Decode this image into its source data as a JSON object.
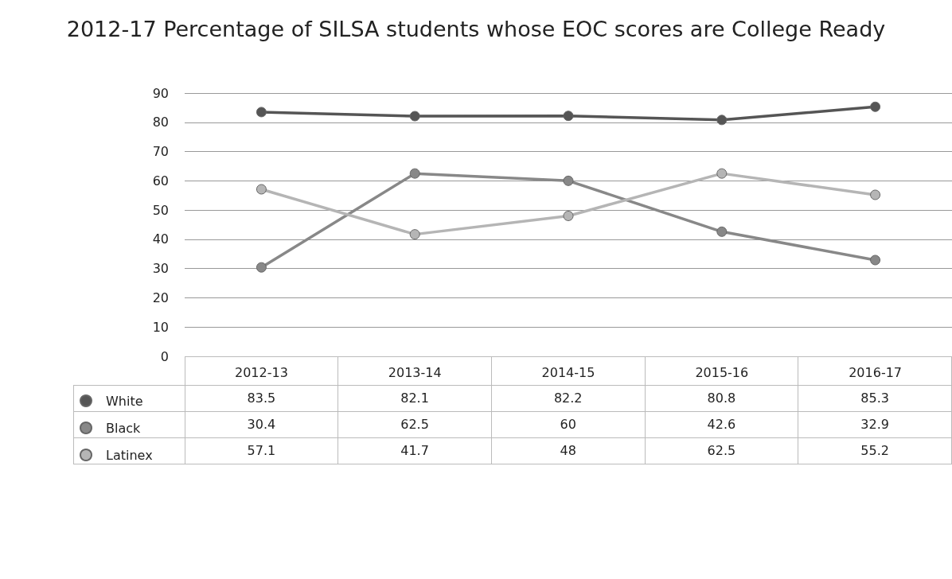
{
  "chart_data": {
    "type": "line",
    "title": "2012-17 Percentage of SILSA students whose EOC scores are College Ready",
    "categories": [
      "2012-13",
      "2013-14",
      "2014-15",
      "2015-16",
      "2016-17"
    ],
    "series": [
      {
        "name": "White",
        "color": "#555555",
        "values": [
          83.5,
          82.1,
          82.2,
          80.8,
          85.3
        ]
      },
      {
        "name": "Black",
        "color": "#888888",
        "values": [
          30.4,
          62.5,
          60,
          42.6,
          32.9
        ]
      },
      {
        "name": "Latinex",
        "color": "#b5b5b5",
        "values": [
          57.1,
          41.7,
          48,
          62.5,
          55.2
        ]
      }
    ],
    "ylim": [
      0,
      90
    ],
    "yticks": [
      0,
      10,
      20,
      30,
      40,
      50,
      60,
      70,
      80,
      90
    ],
    "grid": "y",
    "legend": "bottom left",
    "marker": "circle",
    "line_style": "solid",
    "data_labels": true
  }
}
